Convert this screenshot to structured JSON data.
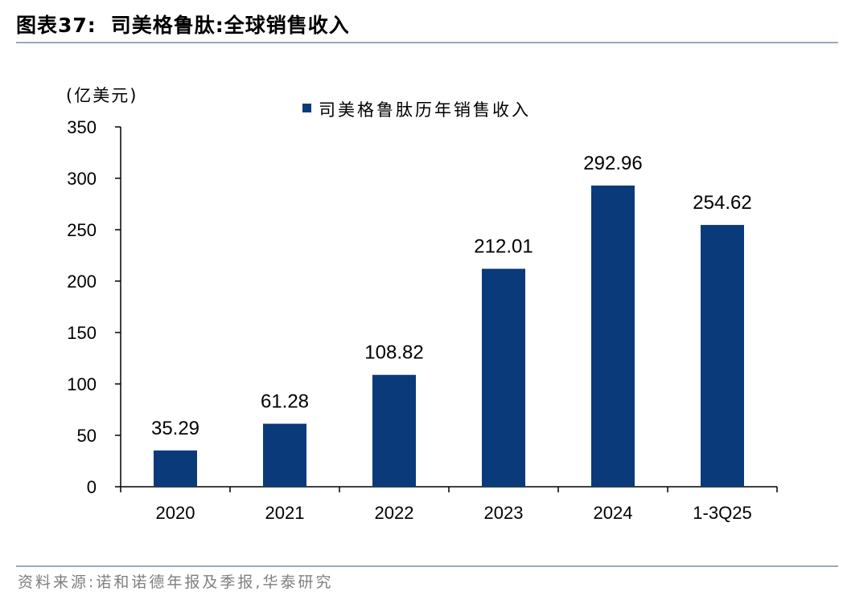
{
  "figure": {
    "label": "图表37:",
    "title": "司美格鲁肽:全球销售收入"
  },
  "source": "资料来源:诺和诺德年报及季报,华泰研究",
  "colors": {
    "bar": "#0a3a7a",
    "axis": "#000000",
    "rule": "#9aa8bc"
  },
  "chart_data": {
    "type": "bar",
    "unit_label": "(亿美元)",
    "categories": [
      "2020",
      "2021",
      "2022",
      "2023",
      "2024",
      "1-3Q25"
    ],
    "series": [
      {
        "name": "司美格鲁肽历年销售收入",
        "values": [
          35.29,
          61.28,
          108.82,
          212.01,
          292.96,
          254.62
        ],
        "labels": [
          "35.29",
          "61.28",
          "108.82",
          "212.01",
          "292.96",
          "254.62"
        ]
      }
    ],
    "ylim": [
      0,
      350
    ],
    "yticks": [
      0,
      50,
      100,
      150,
      200,
      250,
      300,
      350
    ],
    "legend_position": "top-center",
    "grid": false
  }
}
